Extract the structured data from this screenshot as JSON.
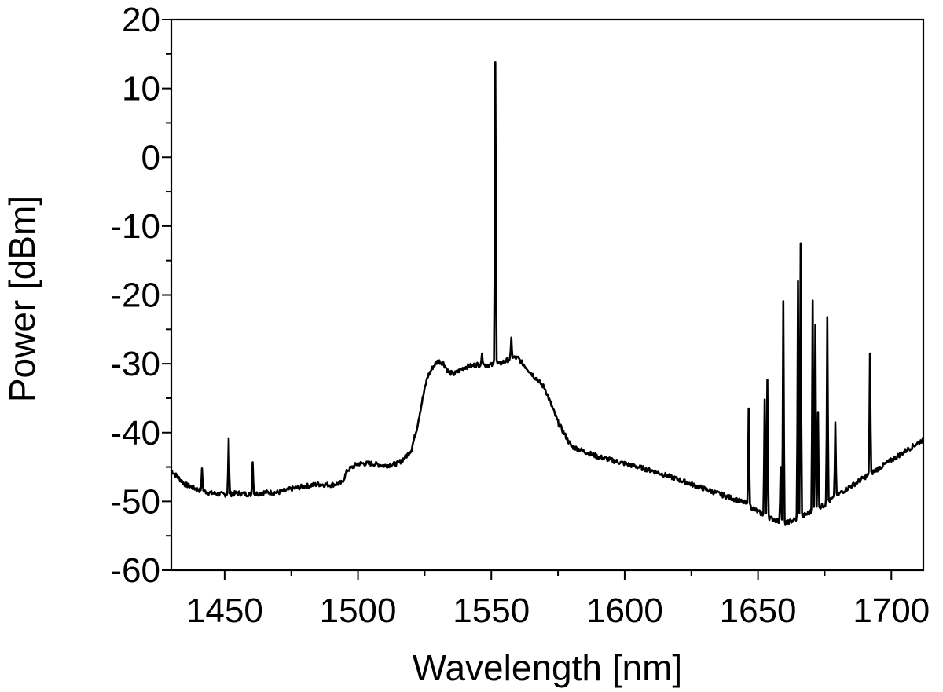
{
  "chart_data": {
    "type": "line",
    "xlabel": "Wavelength [nm]",
    "ylabel": "Power [dBm]",
    "xlim": [
      1430,
      1712
    ],
    "ylim": [
      -60,
      20
    ],
    "x_ticks": [
      1450,
      1500,
      1550,
      1600,
      1650,
      1700
    ],
    "x_tick_labels": [
      "1450",
      "1500",
      "1550",
      "1600",
      "1650",
      "1700"
    ],
    "y_ticks": [
      -60,
      -50,
      -40,
      -30,
      -20,
      -10,
      0,
      10,
      20
    ],
    "y_tick_labels": [
      "-60",
      "-50",
      "-40",
      "-30",
      "-20",
      "-10",
      "0",
      "10",
      "20"
    ],
    "grid": false,
    "colors": {
      "line": "#000000",
      "axes": "#000000",
      "background": "#ffffff"
    },
    "series": [
      {
        "baseline": {
          "x": [
            1430,
            1435,
            1440,
            1445,
            1450,
            1455,
            1460,
            1465,
            1470,
            1475,
            1480,
            1485,
            1490,
            1494,
            1496,
            1500,
            1505,
            1510,
            1515,
            1518,
            1520,
            1522,
            1524,
            1526,
            1528,
            1530,
            1532,
            1534,
            1536,
            1538,
            1540,
            1545,
            1550,
            1553,
            1556,
            1558,
            1560,
            1563,
            1566,
            1570,
            1575,
            1580,
            1590,
            1600,
            1610,
            1620,
            1630,
            1640,
            1645,
            1650,
            1655,
            1660,
            1665,
            1670,
            1675,
            1680,
            1690,
            1700,
            1712
          ],
          "y": [
            -45.5,
            -47.5,
            -48.3,
            -48.8,
            -49.0,
            -48.8,
            -49.0,
            -48.7,
            -48.7,
            -48.2,
            -47.8,
            -47.5,
            -47.6,
            -47.3,
            -45.5,
            -44.5,
            -44.5,
            -44.8,
            -44.5,
            -43.5,
            -42.5,
            -39.5,
            -35.5,
            -32.0,
            -30.5,
            -29.6,
            -29.9,
            -31.2,
            -31.5,
            -31.0,
            -30.5,
            -30.1,
            -30.2,
            -30.0,
            -29.5,
            -29.1,
            -29.2,
            -30.5,
            -31.8,
            -33.5,
            -38.5,
            -42.0,
            -43.5,
            -44.5,
            -45.5,
            -46.8,
            -48.2,
            -49.5,
            -50.2,
            -51.5,
            -52.5,
            -53.2,
            -52.5,
            -51.5,
            -50.5,
            -49.0,
            -46.5,
            -44.0,
            -41.0
          ]
        },
        "peaks": [
          {
            "x": 1441.5,
            "y": -45.2
          },
          {
            "x": 1451.5,
            "y": -40.8
          },
          {
            "x": 1460.5,
            "y": -44.3
          },
          {
            "x": 1546.5,
            "y": -28.5
          },
          {
            "x": 1551.5,
            "y": 13.8
          },
          {
            "x": 1557.5,
            "y": -26.2
          },
          {
            "x": 1646.5,
            "y": -36.5
          },
          {
            "x": 1652.5,
            "y": -35.2
          },
          {
            "x": 1653.5,
            "y": -32.3
          },
          {
            "x": 1658.5,
            "y": -45.0
          },
          {
            "x": 1659.5,
            "y": -20.9
          },
          {
            "x": 1665.0,
            "y": -18.0
          },
          {
            "x": 1666.0,
            "y": -12.5
          },
          {
            "x": 1670.5,
            "y": -20.8
          },
          {
            "x": 1671.5,
            "y": -24.3
          },
          {
            "x": 1672.5,
            "y": -37.0
          },
          {
            "x": 1676.0,
            "y": -23.2
          },
          {
            "x": 1679.0,
            "y": -38.5
          },
          {
            "x": 1692.0,
            "y": -28.5
          }
        ]
      }
    ]
  }
}
